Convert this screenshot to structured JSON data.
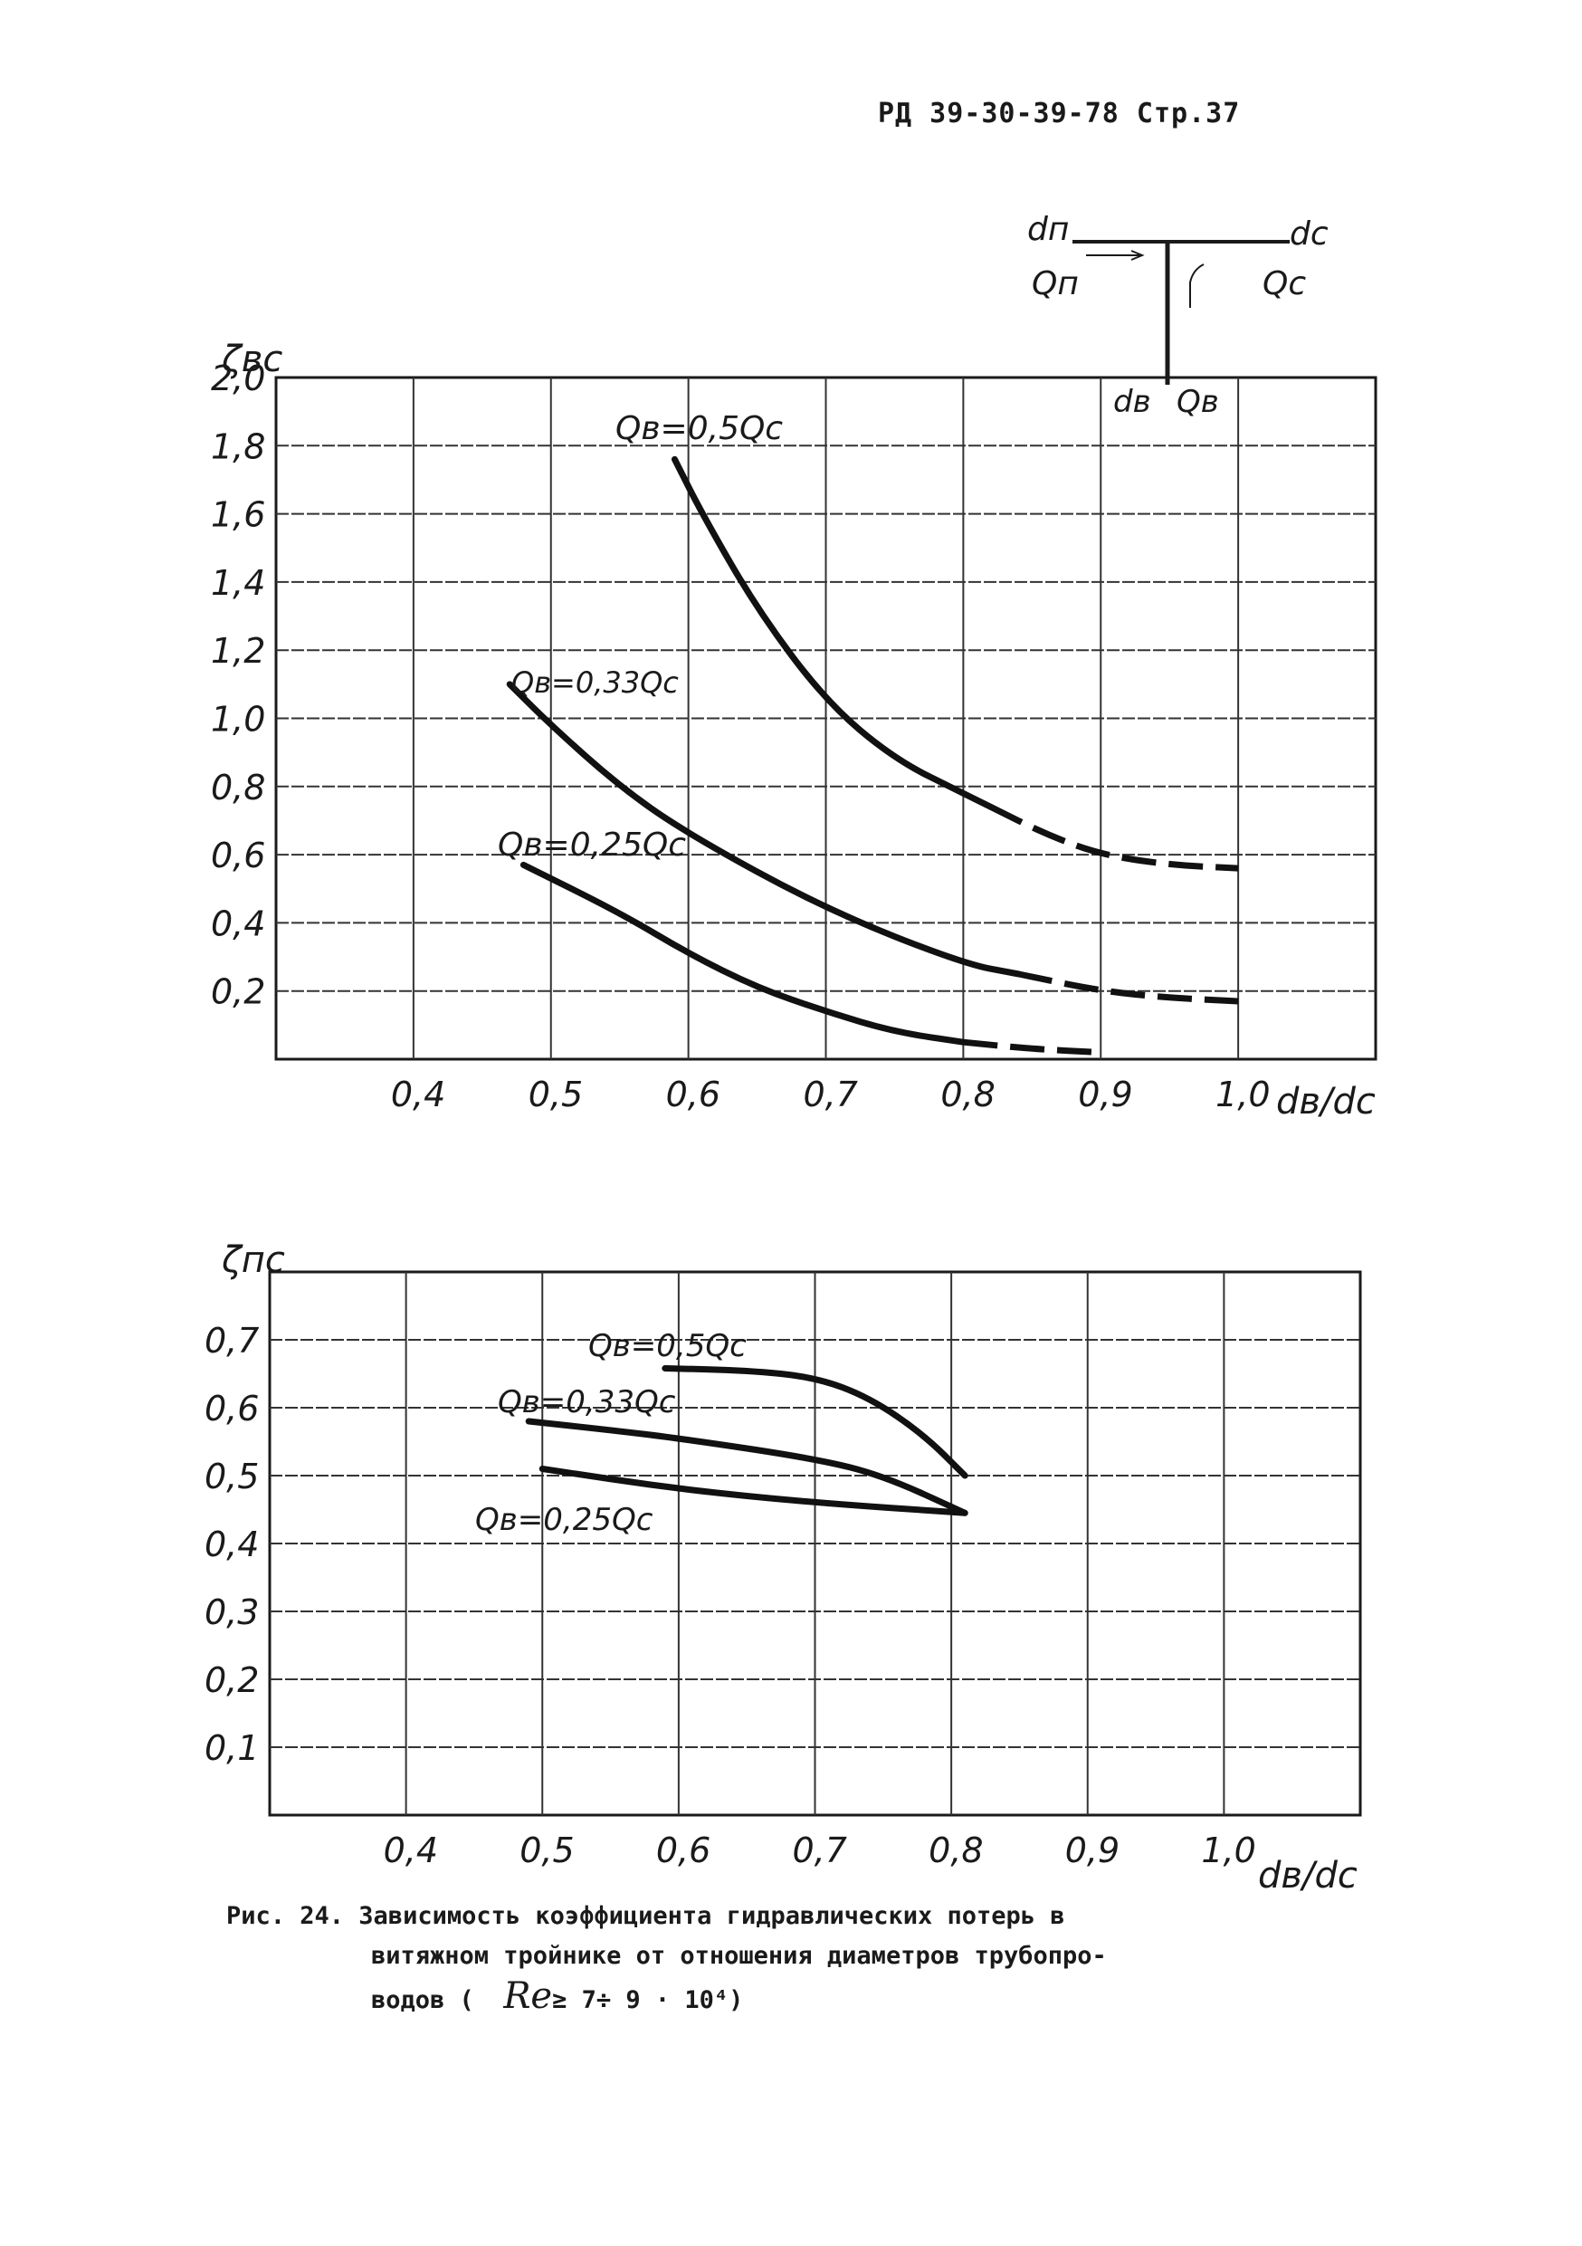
{
  "header": {
    "text": "РД 39-30-39-78 Стр.37"
  },
  "schematic": {
    "d_left": "dп",
    "q_left": "Qп",
    "d_right": "dс",
    "q_right": "Qс",
    "d_bottom": "dв",
    "q_bottom": "Qв"
  },
  "caption": {
    "line1": "Рис. 24. Зависимость коэффициента гидравлических потерь в",
    "line2": "витяжном тройнике от отношения диаметров трубопро-",
    "line3_prefix": "водов (",
    "re_symbol": "Re",
    "line3_suffix": "≥ 7÷ 9 · 10⁴)"
  },
  "chart_data": [
    {
      "type": "line",
      "ylabel": "ζвс",
      "xlabel": "dв/dс",
      "xlim": [
        0.3,
        1.1
      ],
      "ylim": [
        0,
        2.0
      ],
      "grid": true,
      "x_ticks": [
        "0,4",
        "0,5",
        "0,6",
        "0,7",
        "0,8",
        "0,9",
        "1,0"
      ],
      "y_ticks": [
        "0,2",
        "0,4",
        "0,6",
        "0,8",
        "1,0",
        "1,2",
        "1,4",
        "1,6",
        "1,8",
        "2,0"
      ],
      "series": [
        {
          "name": "Qв=0,5Qс",
          "solid": [
            [
              0.59,
              1.76
            ],
            [
              0.61,
              1.6
            ],
            [
              0.65,
              1.32
            ],
            [
              0.7,
              1.05
            ],
            [
              0.75,
              0.88
            ],
            [
              0.8,
              0.78
            ],
            [
              0.82,
              0.74
            ]
          ],
          "dashed": [
            [
              0.82,
              0.74
            ],
            [
              0.86,
              0.66
            ],
            [
              0.9,
              0.6
            ],
            [
              0.95,
              0.57
            ],
            [
              1.0,
              0.56
            ]
          ]
        },
        {
          "name": "Qв=0,33Qс",
          "solid": [
            [
              0.47,
              1.1
            ],
            [
              0.5,
              0.98
            ],
            [
              0.55,
              0.8
            ],
            [
              0.6,
              0.66
            ],
            [
              0.7,
              0.44
            ],
            [
              0.8,
              0.28
            ],
            [
              0.84,
              0.25
            ]
          ],
          "dashed": [
            [
              0.84,
              0.25
            ],
            [
              0.9,
              0.2
            ],
            [
              0.95,
              0.18
            ],
            [
              1.0,
              0.17
            ]
          ]
        },
        {
          "name": "Qв=0,25Qс",
          "solid": [
            [
              0.48,
              0.57
            ],
            [
              0.55,
              0.43
            ],
            [
              0.6,
              0.31
            ],
            [
              0.65,
              0.21
            ],
            [
              0.7,
              0.14
            ],
            [
              0.75,
              0.08
            ],
            [
              0.8,
              0.05
            ]
          ],
          "dashed": [
            [
              0.8,
              0.05
            ],
            [
              0.85,
              0.03
            ],
            [
              0.9,
              0.02
            ]
          ]
        }
      ]
    },
    {
      "type": "line",
      "ylabel": "ζпс",
      "xlabel": "dв/dс",
      "xlim": [
        0.3,
        1.1
      ],
      "ylim": [
        0,
        0.8
      ],
      "grid": true,
      "x_ticks": [
        "0,4",
        "0,5",
        "0,6",
        "0,7",
        "0,8",
        "0,9",
        "1,0"
      ],
      "y_ticks": [
        "0,1",
        "0,2",
        "0,3",
        "0,4",
        "0,5",
        "0,6",
        "0,7"
      ],
      "series": [
        {
          "name": "Qв=0,5Qс",
          "solid": [
            [
              0.59,
              0.658
            ],
            [
              0.65,
              0.655
            ],
            [
              0.7,
              0.645
            ],
            [
              0.74,
              0.615
            ],
            [
              0.78,
              0.56
            ],
            [
              0.81,
              0.5
            ]
          ]
        },
        {
          "name": "Qв=0,33Qс",
          "solid": [
            [
              0.49,
              0.58
            ],
            [
              0.55,
              0.567
            ],
            [
              0.6,
              0.555
            ],
            [
              0.7,
              0.525
            ],
            [
              0.75,
              0.5
            ],
            [
              0.81,
              0.445
            ]
          ]
        },
        {
          "name": "Qв=0,25Qс",
          "solid": [
            [
              0.5,
              0.51
            ],
            [
              0.6,
              0.48
            ],
            [
              0.7,
              0.46
            ],
            [
              0.81,
              0.445
            ]
          ]
        }
      ]
    }
  ]
}
